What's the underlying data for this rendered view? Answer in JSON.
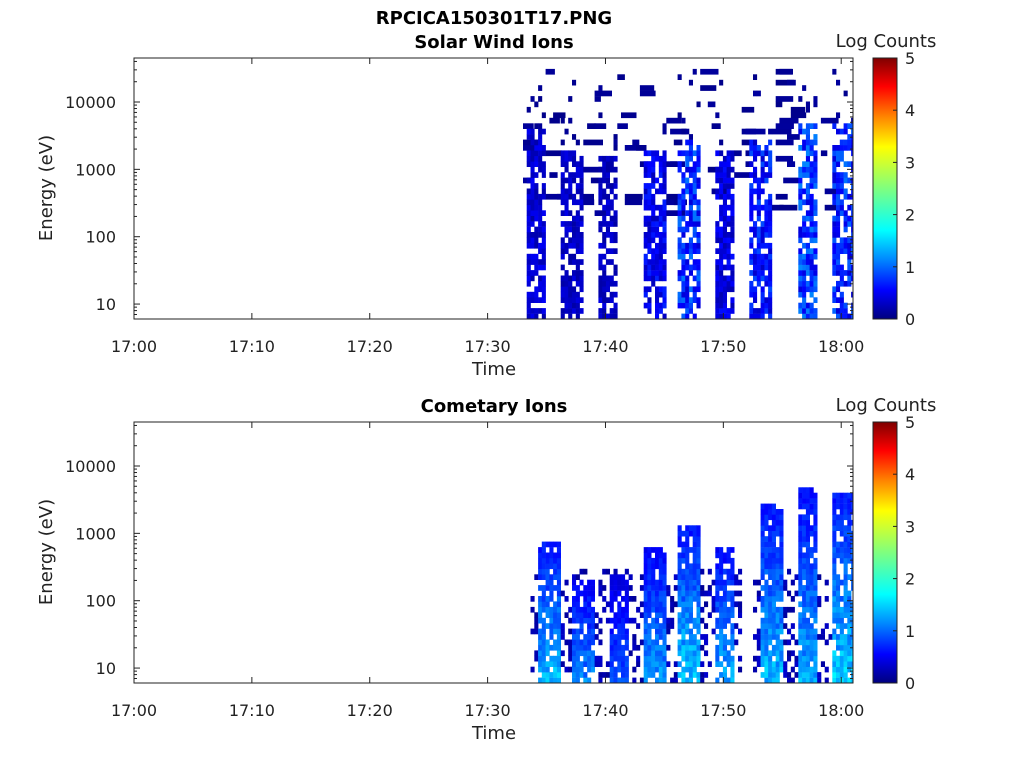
{
  "figure": {
    "title": "RPCICA150301T17.PNG",
    "colorbar_label": "Log Counts"
  },
  "chart_data": [
    {
      "type": "heatmap",
      "title": "Solar Wind Ions",
      "xlabel": "Time",
      "ylabel": "Energy (eV)",
      "x_range": [
        "17:00",
        "18:01"
      ],
      "x_ticks": [
        "17:00",
        "17:10",
        "17:20",
        "17:30",
        "17:40",
        "17:50",
        "18:00"
      ],
      "y_range": [
        6,
        45000
      ],
      "y_scale": "log",
      "y_ticks": [
        10,
        100,
        1000,
        10000
      ],
      "y_tick_labels": [
        "10",
        "100",
        "1000",
        "10000"
      ],
      "colorbar": {
        "min": 0,
        "max": 5,
        "ticks": [
          "0",
          "1",
          "2",
          "3",
          "4",
          "5"
        ]
      },
      "active_time_range": [
        "17:33",
        "18:01"
      ],
      "bursts": [
        {
          "time": "17:34",
          "energy_min": 6,
          "energy_max": 4000,
          "peak_log_counts": 0.6
        },
        {
          "time": "17:37",
          "energy_min": 6,
          "energy_max": 2000,
          "peak_log_counts": 0.5
        },
        {
          "time": "17:40",
          "energy_min": 6,
          "energy_max": 1500,
          "peak_log_counts": 0.5
        },
        {
          "time": "17:44",
          "energy_min": 6,
          "energy_max": 2000,
          "peak_log_counts": 0.8
        },
        {
          "time": "17:47",
          "energy_min": 6,
          "energy_max": 3000,
          "peak_log_counts": 1.2
        },
        {
          "time": "17:50",
          "energy_min": 6,
          "energy_max": 2000,
          "peak_log_counts": 0.7
        },
        {
          "time": "17:53",
          "energy_min": 6,
          "energy_max": 3000,
          "peak_log_counts": 1.0
        },
        {
          "time": "17:57",
          "energy_min": 6,
          "energy_max": 5000,
          "peak_log_counts": 1.3
        },
        {
          "time": "18:00",
          "energy_min": 6,
          "energy_max": 5000,
          "peak_log_counts": 1.2
        }
      ]
    },
    {
      "type": "heatmap",
      "title": "Cometary Ions",
      "xlabel": "Time",
      "ylabel": "Energy (eV)",
      "x_range": [
        "17:00",
        "18:01"
      ],
      "x_ticks": [
        "17:00",
        "17:10",
        "17:20",
        "17:30",
        "17:40",
        "17:50",
        "18:00"
      ],
      "y_range": [
        6,
        45000
      ],
      "y_scale": "log",
      "y_ticks": [
        10,
        100,
        1000,
        10000
      ],
      "y_tick_labels": [
        "10",
        "100",
        "1000",
        "10000"
      ],
      "colorbar": {
        "min": 0,
        "max": 5,
        "ticks": [
          "0",
          "1",
          "2",
          "3",
          "4",
          "5"
        ]
      },
      "active_time_range": [
        "17:33",
        "18:01"
      ],
      "bursts": [
        {
          "time": "17:35",
          "energy_min": 6,
          "energy_max": 800,
          "peak_log_counts": 1.8
        },
        {
          "time": "17:38",
          "energy_min": 6,
          "energy_max": 200,
          "peak_log_counts": 1.5
        },
        {
          "time": "17:41",
          "energy_min": 6,
          "energy_max": 250,
          "peak_log_counts": 1.2
        },
        {
          "time": "17:44",
          "energy_min": 6,
          "energy_max": 600,
          "peak_log_counts": 1.6
        },
        {
          "time": "17:47",
          "energy_min": 6,
          "energy_max": 1200,
          "peak_log_counts": 1.9
        },
        {
          "time": "17:50",
          "energy_min": 6,
          "energy_max": 600,
          "peak_log_counts": 1.7
        },
        {
          "time": "17:54",
          "energy_min": 6,
          "energy_max": 3000,
          "peak_log_counts": 1.8
        },
        {
          "time": "17:57",
          "energy_min": 6,
          "energy_max": 4500,
          "peak_log_counts": 1.7
        },
        {
          "time": "18:00",
          "energy_min": 6,
          "energy_max": 4000,
          "peak_log_counts": 1.9
        }
      ]
    }
  ]
}
